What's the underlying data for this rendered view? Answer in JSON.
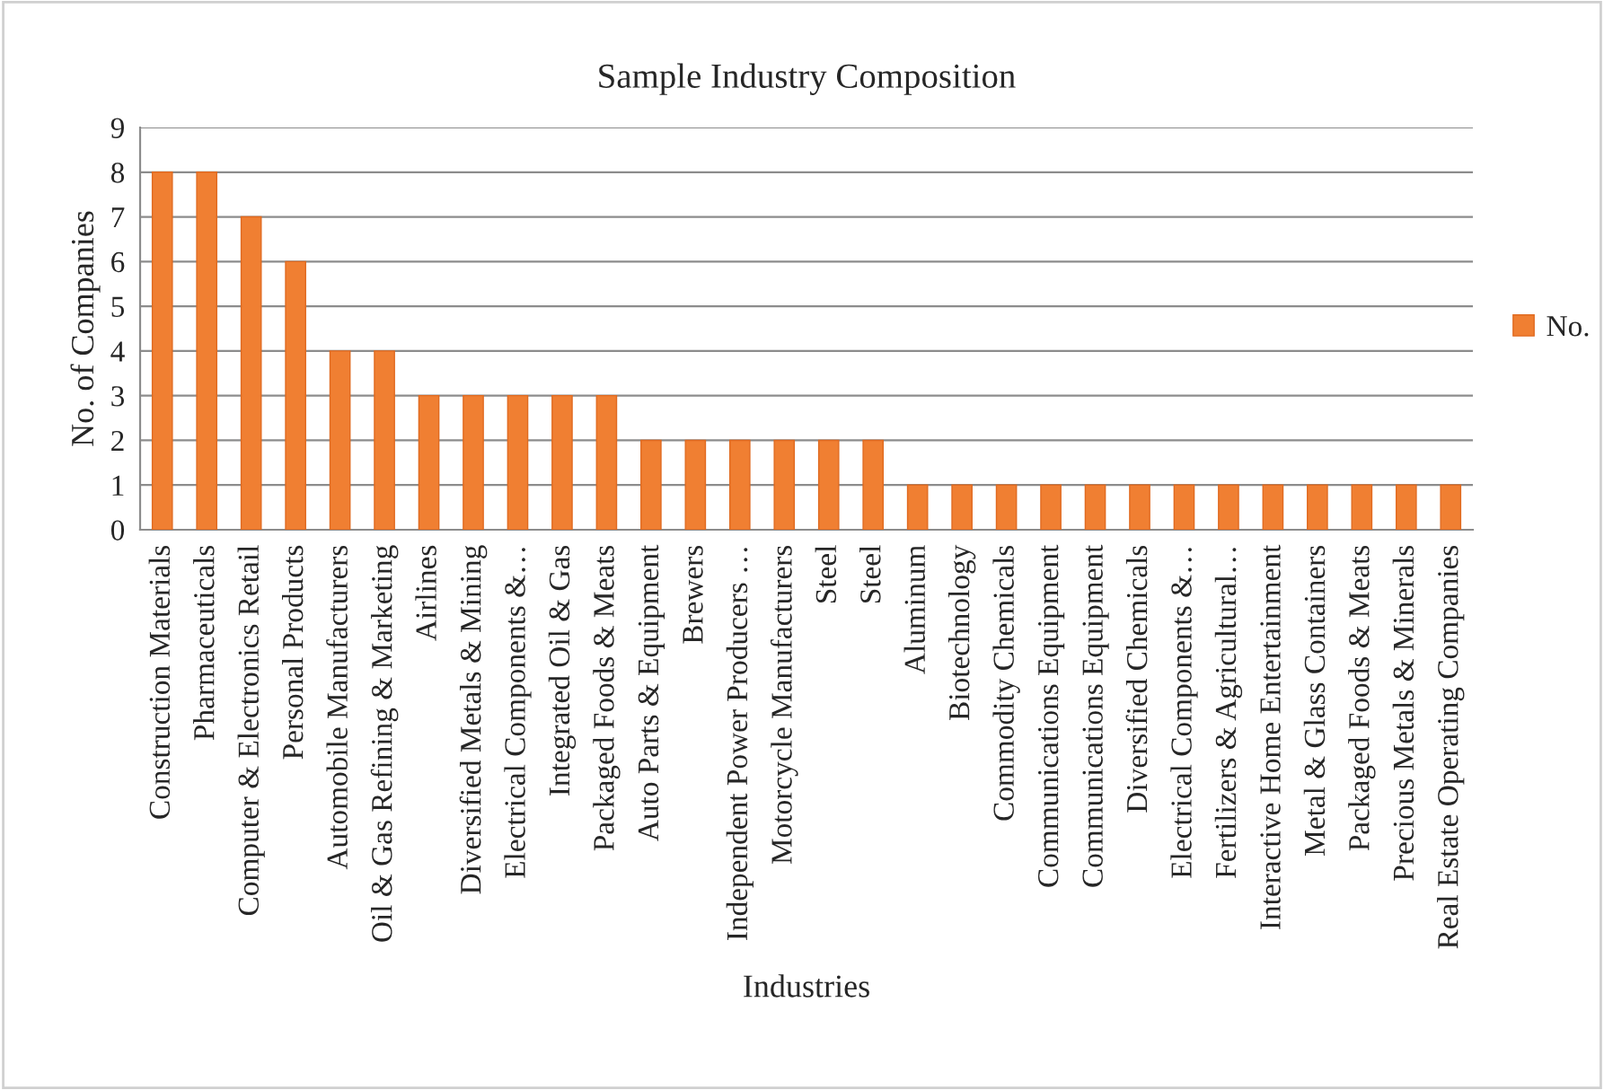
{
  "chart_data": {
    "type": "bar",
    "title": "Sample Industry Composition",
    "xlabel": "Industries",
    "ylabel": "No. of Companies",
    "categories": [
      "Construction Materials",
      "Pharmaceuticals",
      "Computer & Electronics Retail",
      "Personal Products",
      "Automobile Manufacturers",
      "Oil & Gas Refining & Marketing",
      "Airlines",
      "Diversified Metals & Mining",
      "Electrical Components &…",
      "Integrated Oil & Gas",
      "Packaged Foods & Meats",
      "Auto Parts & Equipment",
      "Brewers",
      "Independent Power Producers …",
      "Motorcycle Manufacturers",
      "Steel",
      "Steel",
      "Aluminum",
      "Biotechnology",
      "Commodity Chemicals",
      "Communications Equipment",
      "Communications Equipment",
      "Diversified Chemicals",
      "Electrical Components &…",
      "Fertilizers & Agricultural…",
      "Interactive Home Entertainment",
      "Metal & Glass Containers",
      "Packaged Foods & Meats",
      "Precious Metals & Minerals",
      "Real Estate Operating Companies"
    ],
    "series": [
      {
        "name": "No.",
        "color": "#f07f32",
        "values": [
          8,
          8,
          7,
          6,
          4,
          4,
          3,
          3,
          3,
          3,
          3,
          2,
          2,
          2,
          2,
          2,
          2,
          1,
          1,
          1,
          1,
          1,
          1,
          1,
          1,
          1,
          1,
          1,
          1,
          1
        ]
      }
    ],
    "ylim": [
      0,
      9
    ],
    "yticks": [
      0,
      1,
      2,
      3,
      4,
      5,
      6,
      7,
      8,
      9
    ],
    "grid": "y",
    "legend": "right"
  }
}
